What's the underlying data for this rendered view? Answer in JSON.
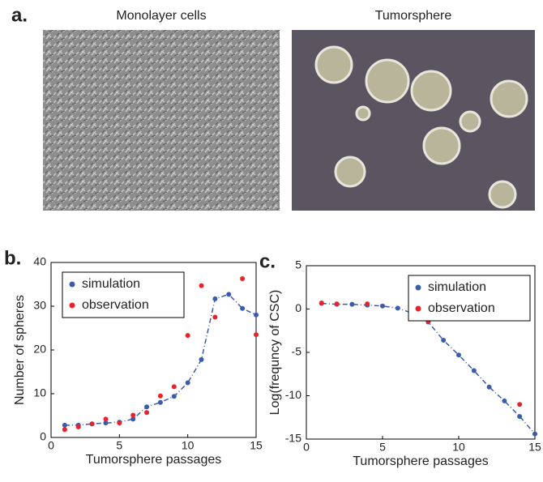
{
  "figure_a": {
    "label": "a.",
    "captions": [
      "Monolayer cells",
      "Tumorsphere"
    ]
  },
  "chart_data": [
    {
      "type": "scatter",
      "label": "b.",
      "xlabel": "Tumorsphere passages",
      "ylabel": "Number of spheres",
      "xlim": [
        0,
        15
      ],
      "ylim": [
        0,
        40
      ],
      "xticks": [
        0,
        5,
        10,
        15
      ],
      "yticks": [
        0,
        10,
        20,
        30,
        40
      ],
      "legend": "upper left",
      "x": [
        1,
        2,
        3,
        4,
        5,
        6,
        7,
        8,
        9,
        10,
        11,
        12,
        13,
        14,
        15
      ],
      "series": [
        {
          "name": "simulation",
          "color": "#3b5bab",
          "line": "dashdot",
          "values": [
            2.8,
            2.8,
            3.1,
            3.3,
            3.5,
            4.2,
            7,
            8,
            9.4,
            12.5,
            17.8,
            31.7,
            32.7,
            29.5,
            28
          ]
        },
        {
          "name": "observation",
          "color": "#e8232a",
          "values": [
            1.8,
            2.4,
            3.1,
            4.2,
            3.3,
            5.1,
            5.7,
            9.5,
            11.6,
            23.3,
            34.7,
            27.5,
            null,
            36.3,
            23.5
          ]
        }
      ]
    },
    {
      "type": "scatter",
      "label": "c.",
      "xlabel": "Tumorsphere passages",
      "ylabel": "Log(frequncy of CSC)",
      "xlim": [
        0,
        15
      ],
      "ylim": [
        -15,
        5
      ],
      "xticks": [
        0,
        5,
        10,
        15
      ],
      "yticks": [
        -15,
        -10,
        -5,
        0,
        5
      ],
      "legend": "upper right",
      "x": [
        1,
        2,
        3,
        4,
        5,
        6,
        7,
        8,
        9,
        10,
        11,
        12,
        13,
        14,
        15
      ],
      "series": [
        {
          "name": "simulation",
          "color": "#3b5bab",
          "line": "dashdot",
          "values": [
            0.65,
            0.55,
            0.55,
            0.45,
            0.35,
            0.1,
            -0.5,
            -1.5,
            -3.6,
            -5.3,
            -7.1,
            -9,
            -10.6,
            -12.4,
            -14.4
          ]
        },
        {
          "name": "observation",
          "color": "#e8232a",
          "values": [
            0.7,
            0.6,
            null,
            0.6,
            null,
            null,
            null,
            -1.4,
            null,
            null,
            null,
            null,
            null,
            -11,
            null
          ]
        }
      ]
    }
  ]
}
